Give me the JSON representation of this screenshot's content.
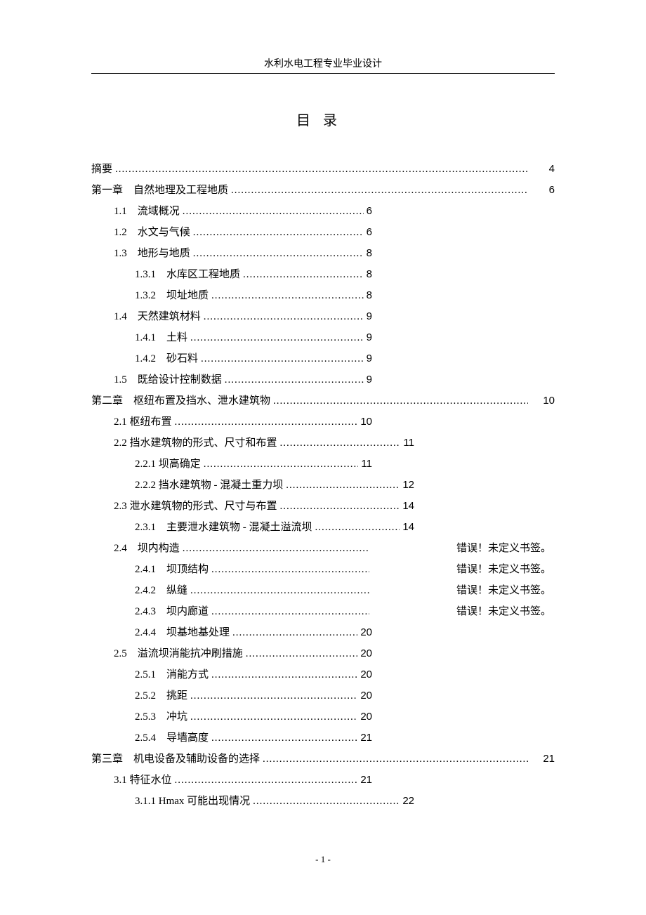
{
  "header": "水利水电工程专业毕业设计",
  "tocTitle": "目录",
  "footer": "- 1 -",
  "entries": [
    {
      "level": 0,
      "label": "摘要",
      "page": "4",
      "mode": "full"
    },
    {
      "level": 0,
      "label": "第一章　自然地理及工程地质",
      "page": "6",
      "mode": "full"
    },
    {
      "level": 1,
      "label": "1.1　流域概况",
      "page": "6",
      "mode": "mid"
    },
    {
      "level": 1,
      "label": "1.2　水文与气候",
      "page": "6",
      "mode": "mid"
    },
    {
      "level": 1,
      "label": "1.3　地形与地质",
      "page": "8",
      "mode": "mid"
    },
    {
      "level": 2,
      "label": "1.3.1　水库区工程地质",
      "page": "8",
      "mode": "mid"
    },
    {
      "level": 2,
      "label": "1.3.2　坝址地质",
      "page": "8",
      "mode": "mid"
    },
    {
      "level": 1,
      "label": "1.4　天然建筑材料",
      "page": "9",
      "mode": "mid"
    },
    {
      "level": 2,
      "label": "1.4.1　土料",
      "page": "9",
      "mode": "mid"
    },
    {
      "level": 2,
      "label": "1.4.2　砂石料",
      "page": "9",
      "mode": "mid"
    },
    {
      "level": 1,
      "label": "1.5　既给设计控制数据",
      "page": "9",
      "mode": "mid"
    },
    {
      "level": 0,
      "label": "第二章　枢纽布置及挡水、泄水建筑物",
      "page": "10",
      "mode": "full"
    },
    {
      "level": 1,
      "label": "2.1 枢纽布置",
      "page": "10",
      "mode": "mid"
    },
    {
      "level": 1,
      "label": "2.2 挡水建筑物的形式、尺寸和布置",
      "page": "11",
      "mode": "wide"
    },
    {
      "level": 2,
      "label": "2.2.1  坝高确定",
      "page": "11",
      "mode": "mid"
    },
    {
      "level": 2,
      "label": "2.2.2  挡水建筑物 - 混凝土重力坝",
      "page": "12",
      "mode": "wide"
    },
    {
      "level": 1,
      "label": "2.3 泄水建筑物的形式、尺寸与布置",
      "page": "14",
      "mode": "wide"
    },
    {
      "level": 2,
      "label": "2.3.1　主要泄水建筑物 - 混凝土溢流坝",
      "page": "14",
      "mode": "wide"
    },
    {
      "level": 1,
      "label": "2.4　坝内构造",
      "page": "错误！未定义书签。",
      "mode": "error"
    },
    {
      "level": 2,
      "label": "2.4.1　坝顶结构",
      "page": "错误！未定义书签。",
      "mode": "error"
    },
    {
      "level": 2,
      "label": "2.4.2　纵缝",
      "page": "错误！未定义书签。",
      "mode": "error"
    },
    {
      "level": 2,
      "label": "2.4.3　坝内廊道",
      "page": "错误！未定义书签。",
      "mode": "error"
    },
    {
      "level": 2,
      "label": "2.4.4　坝基地基处理",
      "page": "20",
      "mode": "mid"
    },
    {
      "level": 1,
      "label": "2.5　溢流坝消能抗冲刷措施",
      "page": "20",
      "mode": "mid"
    },
    {
      "level": 2,
      "label": "2.5.1　消能方式",
      "page": "20",
      "mode": "mid"
    },
    {
      "level": 2,
      "label": "2.5.2　挑距",
      "page": "20",
      "mode": "mid"
    },
    {
      "level": 2,
      "label": "2.5.3　冲坑",
      "page": "20",
      "mode": "mid"
    },
    {
      "level": 2,
      "label": "2.5.4　导墙高度",
      "page": "21",
      "mode": "mid"
    },
    {
      "level": 0,
      "label": "第三章　机电设备及辅助设备的选择",
      "page": "21",
      "mode": "full"
    },
    {
      "level": 1,
      "label": "3.1 特征水位",
      "page": "21",
      "mode": "mid"
    },
    {
      "level": 2,
      "label": "3.1.1 Hmax  可能出现情况",
      "page": "22",
      "mode": "wide"
    }
  ]
}
